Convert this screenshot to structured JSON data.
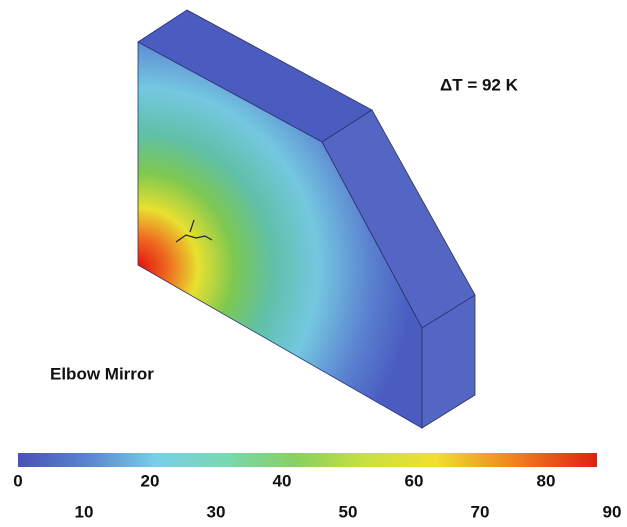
{
  "annotation": "ΔT = 92 K",
  "label": "Elbow Mirror",
  "colorbar": {
    "ticks": [
      0,
      10,
      20,
      30,
      40,
      50,
      60,
      70,
      80,
      90
    ]
  }
}
